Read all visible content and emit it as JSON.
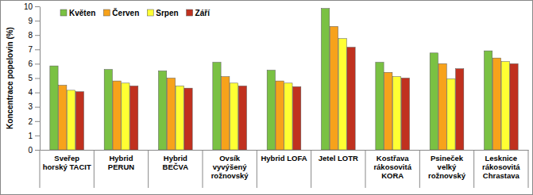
{
  "chart_data": {
    "type": "bar",
    "y_label": "Koncentrace popelovin (%)",
    "categories": [
      "Sveřep\nhorský TACIT",
      "Hybrid\nPERUN",
      "Hybrid\nBEČVA",
      "Ovsík\nvyvýšený\nrožnovský",
      "Hybrid  LOFA",
      "Jetel  LOTR",
      "Kostřava\nrákosovitá\nKORA",
      "Psineček\nvelký\nrožnovský",
      "Lesknice\nrákosovitá\nChrastava"
    ],
    "series": [
      {
        "name": "Květen",
        "color": "#7ac143",
        "values": [
          5.85,
          5.6,
          5.5,
          6.1,
          5.55,
          9.85,
          6.1,
          6.75,
          6.9
        ]
      },
      {
        "name": "Červen",
        "color": "#f7a21b",
        "values": [
          4.5,
          4.8,
          5.0,
          5.1,
          4.8,
          8.6,
          5.4,
          6.0,
          6.4
        ]
      },
      {
        "name": "Srpen",
        "color": "#ffff33",
        "values": [
          4.15,
          4.65,
          4.45,
          4.65,
          4.65,
          7.75,
          5.1,
          4.95,
          6.15
        ]
      },
      {
        "name": "Září",
        "color": "#c0311f",
        "values": [
          4.05,
          4.45,
          4.3,
          4.45,
          4.4,
          7.15,
          5.0,
          5.65,
          6.0
        ]
      }
    ],
    "ylim": [
      0,
      10
    ],
    "yticks": [
      0,
      1,
      2,
      3,
      4,
      5,
      6,
      7,
      8,
      9,
      10
    ],
    "grid": false,
    "legend": "top-left"
  }
}
